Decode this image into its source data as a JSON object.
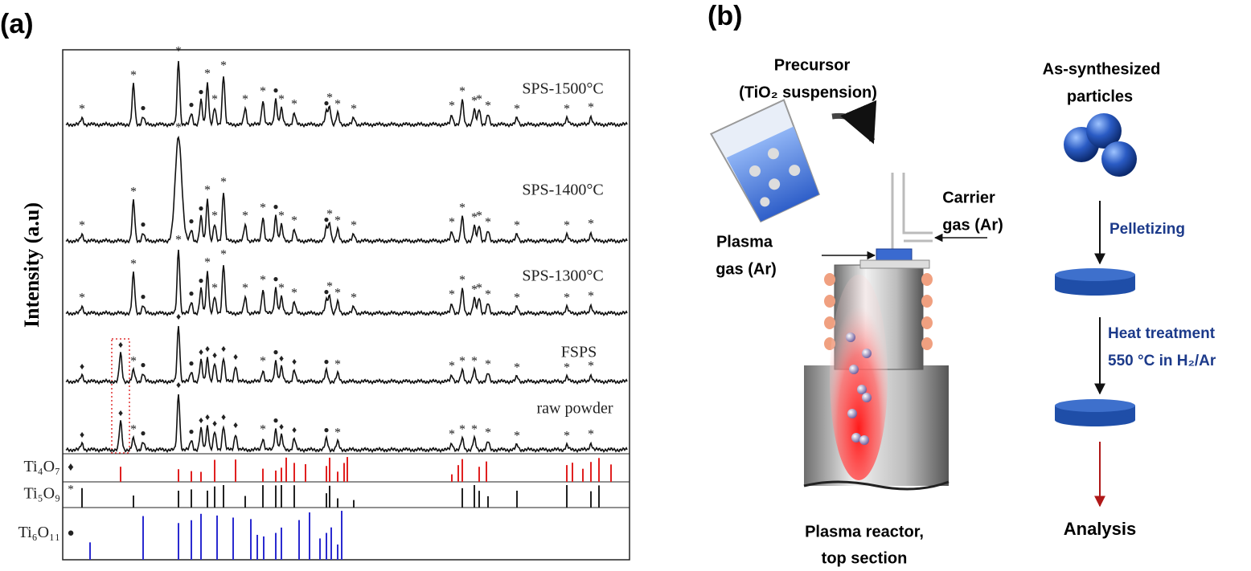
{
  "panel_a": {
    "label": "(a)",
    "y_axis_label": "Intensity (a.u)",
    "traces": [
      "SPS-1500°C",
      "SPS-1400°C",
      "SPS-1300°C",
      "FSPS",
      "raw powder"
    ],
    "references": [
      {
        "name": "Ti₄O₇",
        "symbol": "♦"
      },
      {
        "name": "Ti₅O₉",
        "symbol": "*"
      },
      {
        "name": "Ti₆O₁₁",
        "symbol": "●"
      }
    ]
  },
  "panel_b": {
    "label": "(b)",
    "precursor": [
      "Precursor",
      "(TiO₂ suspension)"
    ],
    "particles": [
      "As-synthesized",
      "particles"
    ],
    "carrier_gas": [
      "Carrier",
      "gas (Ar)"
    ],
    "plasma_gas": [
      "Plasma",
      "gas (Ar)"
    ],
    "steps": [
      "Pelletizing",
      "Heat treatment",
      "550 °C in H₂/Ar"
    ],
    "reactor": [
      "Plasma reactor,",
      "top section"
    ],
    "final": "Analysis"
  }
}
